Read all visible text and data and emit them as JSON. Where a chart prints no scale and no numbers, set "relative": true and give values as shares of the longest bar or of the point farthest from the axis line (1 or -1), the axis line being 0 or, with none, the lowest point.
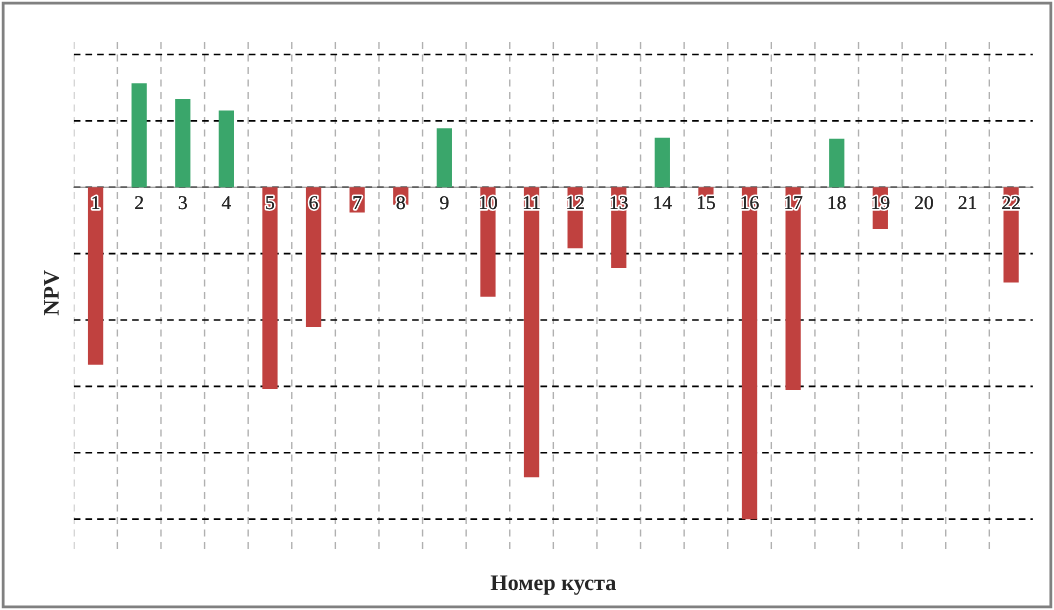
{
  "chart_data": {
    "type": "bar",
    "relative": true,
    "xlabel": "Номер куста",
    "ylabel": "NPV",
    "categories": [
      "1",
      "2",
      "3",
      "4",
      "5",
      "6",
      "7",
      "8",
      "9",
      "10",
      "11",
      "12",
      "13",
      "14",
      "15",
      "16",
      "17",
      "18",
      "19",
      "20",
      "21",
      "22"
    ],
    "values": [
      -0.535,
      0.313,
      0.266,
      0.231,
      -0.608,
      -0.421,
      -0.076,
      -0.053,
      0.178,
      -0.33,
      -0.874,
      -0.184,
      -0.243,
      0.149,
      -0.029,
      -1,
      -0.611,
      0.146,
      -0.126,
      0,
      0,
      -0.287
    ],
    "colors": [
      "#c0413f",
      "#3aa66b",
      "#3aa66b",
      "#3aa66b",
      "#c0413f",
      "#c0413f",
      "#c0413f",
      "#c0413f",
      "#3aa66b",
      "#c0413f",
      "#c0413f",
      "#c0413f",
      "#c0413f",
      "#3aa66b",
      "#c0413f",
      "#c0413f",
      "#c0413f",
      "#3aa66b",
      "#c0413f",
      "#c0413f",
      "#c0413f",
      "#c0413f"
    ],
    "grid": true
  }
}
